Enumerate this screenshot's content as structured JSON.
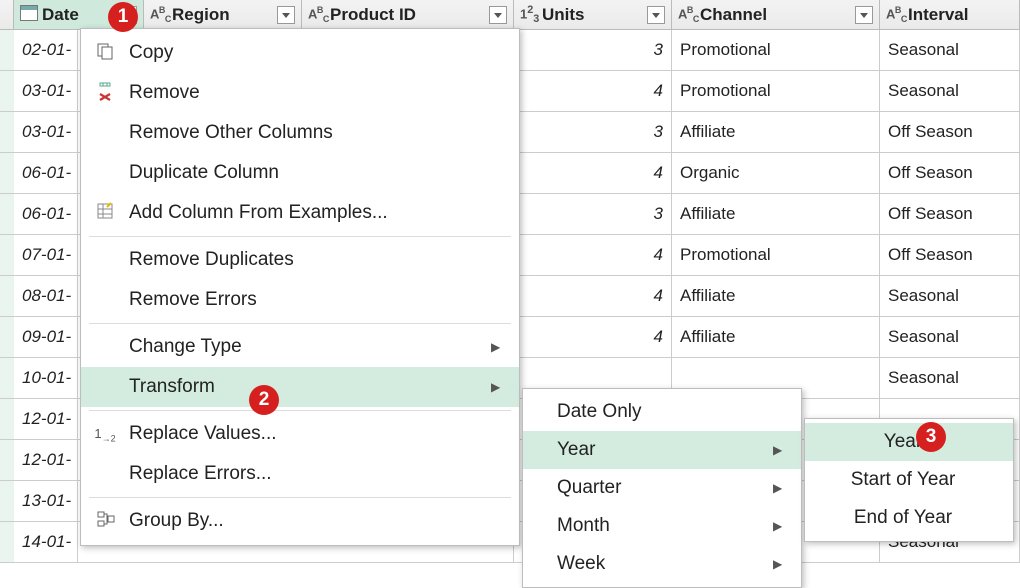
{
  "columns": [
    {
      "key": "date",
      "name": "Date",
      "type": "date",
      "width": "c-date"
    },
    {
      "key": "region",
      "name": "Region",
      "type": "text",
      "width": "c-region"
    },
    {
      "key": "product",
      "name": "Product ID",
      "type": "text",
      "width": "c-product"
    },
    {
      "key": "units",
      "name": "Units",
      "type": "num",
      "width": "c-units"
    },
    {
      "key": "channel",
      "name": "Channel",
      "type": "text",
      "width": "c-channel"
    },
    {
      "key": "interval",
      "name": "Interval",
      "type": "text",
      "width": "c-interval"
    }
  ],
  "rows": [
    {
      "date": "02-01-",
      "units": 3,
      "channel": "Promotional",
      "interval": "Seasonal"
    },
    {
      "date": "03-01-",
      "units": 4,
      "channel": "Promotional",
      "interval": "Seasonal"
    },
    {
      "date": "03-01-",
      "units": 3,
      "channel": "Affiliate",
      "interval": "Off Season"
    },
    {
      "date": "06-01-",
      "units": 4,
      "channel": "Organic",
      "interval": "Off Season"
    },
    {
      "date": "06-01-",
      "units": 3,
      "channel": "Affiliate",
      "interval": "Off Season"
    },
    {
      "date": "07-01-",
      "units": 4,
      "channel": "Promotional",
      "interval": "Off Season"
    },
    {
      "date": "08-01-",
      "units": 4,
      "channel": "Affiliate",
      "interval": "Seasonal"
    },
    {
      "date": "09-01-",
      "units": 4,
      "channel": "Affiliate",
      "interval": "Seasonal"
    },
    {
      "date": "10-01-",
      "units": null,
      "channel": "",
      "interval": "Seasonal"
    },
    {
      "date": "12-01-",
      "units": null,
      "channel": "",
      "interval": ""
    },
    {
      "date": "12-01-",
      "units": null,
      "channel": "",
      "interval": ""
    },
    {
      "date": "13-01-",
      "units": null,
      "channel": "",
      "interval": ""
    },
    {
      "date": "14-01-",
      "units": null,
      "channel": "",
      "interval": "Seasonal"
    }
  ],
  "contextMenu": {
    "items": [
      {
        "label": "Copy",
        "icon": "copy"
      },
      {
        "label": "Remove",
        "icon": "remove"
      },
      {
        "label": "Remove Other Columns"
      },
      {
        "label": "Duplicate Column"
      },
      {
        "label": "Add Column From Examples...",
        "icon": "examples"
      },
      {
        "sep": true
      },
      {
        "label": "Remove Duplicates"
      },
      {
        "label": "Remove Errors"
      },
      {
        "sep": true
      },
      {
        "label": "Change Type",
        "submenu": true
      },
      {
        "label": "Transform",
        "submenu": true,
        "highlight": true
      },
      {
        "sep": true
      },
      {
        "label": "Replace Values...",
        "icon": "replace"
      },
      {
        "label": "Replace Errors..."
      },
      {
        "sep": true
      },
      {
        "label": "Group By...",
        "icon": "group"
      }
    ],
    "transformSub": [
      {
        "label": "Date Only"
      },
      {
        "label": "Year",
        "submenu": true,
        "highlight": true
      },
      {
        "label": "Quarter",
        "submenu": true
      },
      {
        "label": "Month",
        "submenu": true
      },
      {
        "label": "Week",
        "submenu": true
      }
    ],
    "yearSub": [
      {
        "label": "Year",
        "highlight": true
      },
      {
        "label": "Start of Year"
      },
      {
        "label": "End of Year"
      }
    ]
  },
  "badges": {
    "1": "1",
    "2": "2",
    "3": "3"
  },
  "colors": {
    "highlight": "#d3ecdf",
    "badge": "#d6201f",
    "headerSelected": "#cfe9dc"
  }
}
